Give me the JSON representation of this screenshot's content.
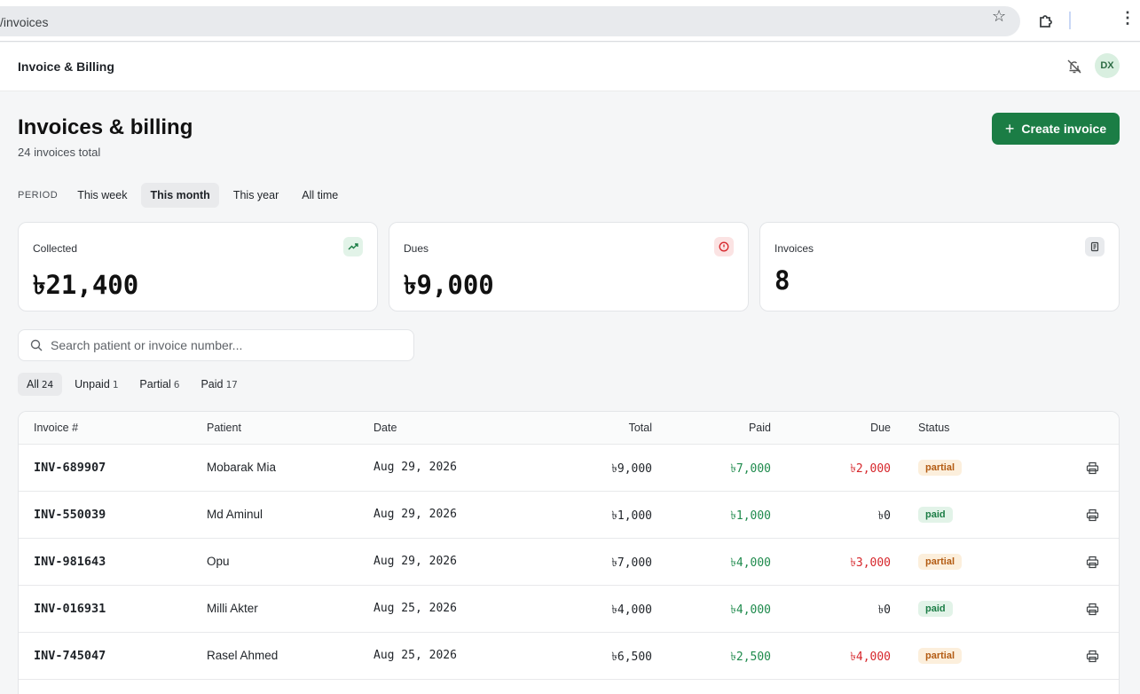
{
  "browser": {
    "url": "/invoices"
  },
  "app": {
    "brand": "Invoice & Billing",
    "avatar_initials": "DX"
  },
  "page": {
    "title": "Invoices & billing",
    "subtitle": "24 invoices total",
    "create_button": "Create invoice"
  },
  "period": {
    "label": "PERIOD",
    "options": [
      "This week",
      "This month",
      "This year",
      "All time"
    ],
    "selected": "This month"
  },
  "stats": [
    {
      "label": "Collected",
      "value": "৳21,400",
      "icon": "trend-up-icon",
      "color": "#1b7d45"
    },
    {
      "label": "Dues",
      "value": "৳9,000",
      "icon": "alert-circle-icon",
      "color": "#d6262b"
    },
    {
      "label": "Invoices",
      "value": "8",
      "icon": "receipt-icon",
      "color": "#3c4043"
    }
  ],
  "search": {
    "placeholder": "Search patient or invoice number..."
  },
  "filters": [
    {
      "label": "All",
      "count": "24",
      "active": true
    },
    {
      "label": "Unpaid",
      "count": "1"
    },
    {
      "label": "Partial",
      "count": "6"
    },
    {
      "label": "Paid",
      "count": "17"
    }
  ],
  "table": {
    "headers": {
      "invoice": "Invoice #",
      "patient": "Patient",
      "date": "Date",
      "total": "Total",
      "paid": "Paid",
      "due": "Due",
      "status": "Status"
    },
    "rows": [
      {
        "invoice": "INV-689907",
        "patient": "Mobarak Mia",
        "date": "Aug 29, 2026",
        "total": "৳9,000",
        "paid": "৳7,000",
        "due": "৳2,000",
        "status": "partial"
      },
      {
        "invoice": "INV-550039",
        "patient": "Md Aminul",
        "date": "Aug 29, 2026",
        "total": "৳1,000",
        "paid": "৳1,000",
        "due": "৳0",
        "status": "paid"
      },
      {
        "invoice": "INV-981643",
        "patient": "Opu",
        "date": "Aug 29, 2026",
        "total": "৳7,000",
        "paid": "৳4,000",
        "due": "৳3,000",
        "status": "partial"
      },
      {
        "invoice": "INV-016931",
        "patient": "Milli Akter",
        "date": "Aug 25, 2026",
        "total": "৳4,000",
        "paid": "৳4,000",
        "due": "৳0",
        "status": "paid"
      },
      {
        "invoice": "INV-745047",
        "patient": "Rasel Ahmed",
        "date": "Aug 25, 2026",
        "total": "৳6,500",
        "paid": "৳2,500",
        "due": "৳4,000",
        "status": "partial"
      }
    ]
  }
}
